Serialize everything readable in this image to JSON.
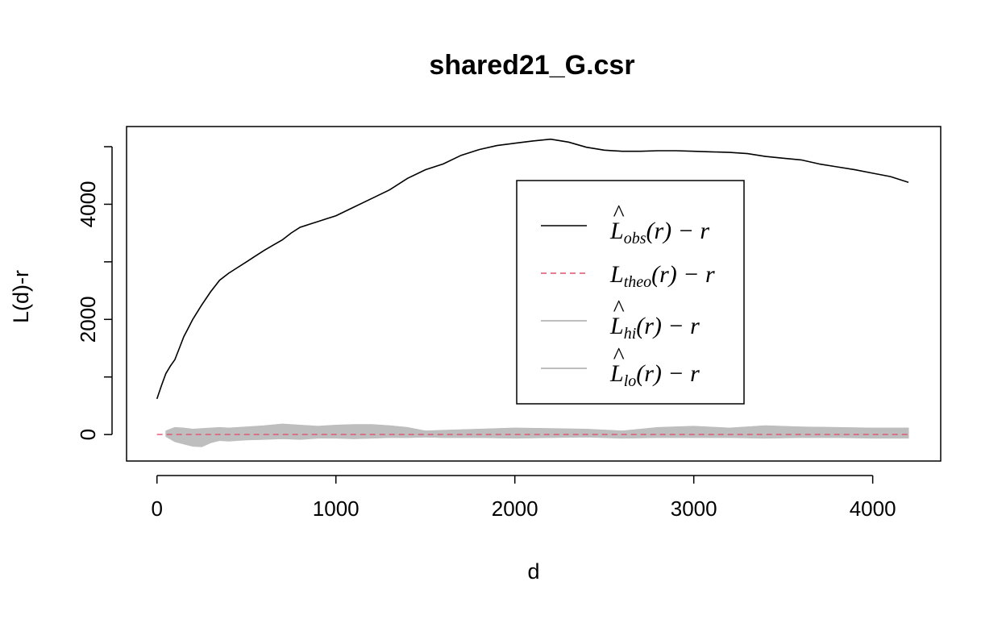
{
  "chart_data": {
    "type": "line",
    "title": "shared21_G.csr",
    "xlabel": "d",
    "ylabel": "L(d)-r",
    "xlim": [
      -170,
      4380
    ],
    "ylim": [
      -460,
      5350
    ],
    "x_ticks": [
      "0",
      "1000",
      "2000",
      "3000",
      "4000"
    ],
    "y_ticks": [
      "0",
      "2000",
      "4000"
    ],
    "y_tick_values": [
      0,
      1000,
      2000,
      3000,
      4000,
      5000
    ],
    "y_tick_labels": [
      "0",
      "",
      "2000",
      "",
      "4000",
      ""
    ],
    "x_tick_values": [
      0,
      1000,
      2000,
      3000,
      4000
    ],
    "series": [
      {
        "key": "obs",
        "color": "#000000",
        "dash": "solid",
        "x": [
          0,
          25,
          50,
          75,
          100,
          125,
          150,
          175,
          200,
          250,
          300,
          350,
          400,
          450,
          500,
          550,
          600,
          650,
          700,
          750,
          800,
          850,
          900,
          950,
          1000,
          1100,
          1200,
          1300,
          1400,
          1500,
          1600,
          1700,
          1800,
          1900,
          2000,
          2100,
          2200,
          2300,
          2400,
          2500,
          2600,
          2700,
          2800,
          2900,
          3000,
          3100,
          3200,
          3300,
          3400,
          3500,
          3600,
          3700,
          3800,
          3900,
          4000,
          4100,
          4200
        ],
        "y": [
          620,
          850,
          1060,
          1190,
          1300,
          1500,
          1700,
          1850,
          2000,
          2250,
          2480,
          2680,
          2800,
          2900,
          3000,
          3100,
          3200,
          3290,
          3380,
          3500,
          3600,
          3650,
          3700,
          3750,
          3800,
          3950,
          4100,
          4250,
          4450,
          4600,
          4700,
          4850,
          4950,
          5020,
          5060,
          5100,
          5130,
          5080,
          4990,
          4940,
          4920,
          4920,
          4930,
          4930,
          4920,
          4910,
          4900,
          4880,
          4830,
          4800,
          4770,
          4700,
          4650,
          4600,
          4540,
          4480,
          4380
        ]
      },
      {
        "key": "theo",
        "color": "#e0506e",
        "dash": "dashed",
        "x": [
          0,
          4200
        ],
        "y": [
          0,
          0
        ]
      },
      {
        "key": "hi",
        "color": "#bebebe",
        "dash": "solid",
        "x": [
          50,
          100,
          150,
          200,
          250,
          300,
          350,
          400,
          500,
          600,
          700,
          800,
          900,
          1000,
          1100,
          1200,
          1300,
          1400,
          1500,
          1600,
          1800,
          2000,
          2200,
          2400,
          2600,
          2800,
          3000,
          3200,
          3400,
          3600,
          3800,
          4000,
          4200
        ],
        "y": [
          60,
          120,
          110,
          90,
          100,
          110,
          120,
          110,
          130,
          150,
          180,
          160,
          140,
          160,
          170,
          170,
          150,
          120,
          60,
          70,
          90,
          110,
          100,
          90,
          60,
          120,
          140,
          110,
          150,
          130,
          120,
          110,
          110
        ]
      },
      {
        "key": "lo",
        "color": "#bebebe",
        "dash": "solid",
        "x": [
          50,
          100,
          150,
          200,
          250,
          300,
          350,
          400,
          500,
          600,
          700,
          800,
          900,
          1000,
          1100,
          1200,
          1300,
          1400,
          1500,
          1600,
          1800,
          2000,
          2200,
          2400,
          2600,
          2800,
          3000,
          3200,
          3400,
          3600,
          3800,
          4000,
          4200
        ],
        "y": [
          -30,
          -120,
          -160,
          -200,
          -210,
          -140,
          -100,
          -110,
          -90,
          -80,
          -70,
          -80,
          -60,
          -60,
          -70,
          -60,
          -50,
          -50,
          -40,
          -50,
          -50,
          -60,
          -50,
          -40,
          -60,
          -50,
          -50,
          -50,
          -60,
          -50,
          -50,
          -60,
          -60
        ]
      }
    ],
    "legend": {
      "placement": "center-right",
      "entries": [
        {
          "main": "L",
          "sub": "obs",
          "rest": "(r) − r"
        },
        {
          "main": "L",
          "sub": "theo",
          "rest": "(r) − r"
        },
        {
          "main": "L",
          "sub": "hi",
          "rest": "(r) − r"
        },
        {
          "main": "L",
          "sub": "lo",
          "rest": "(r) − r"
        }
      ]
    }
  }
}
